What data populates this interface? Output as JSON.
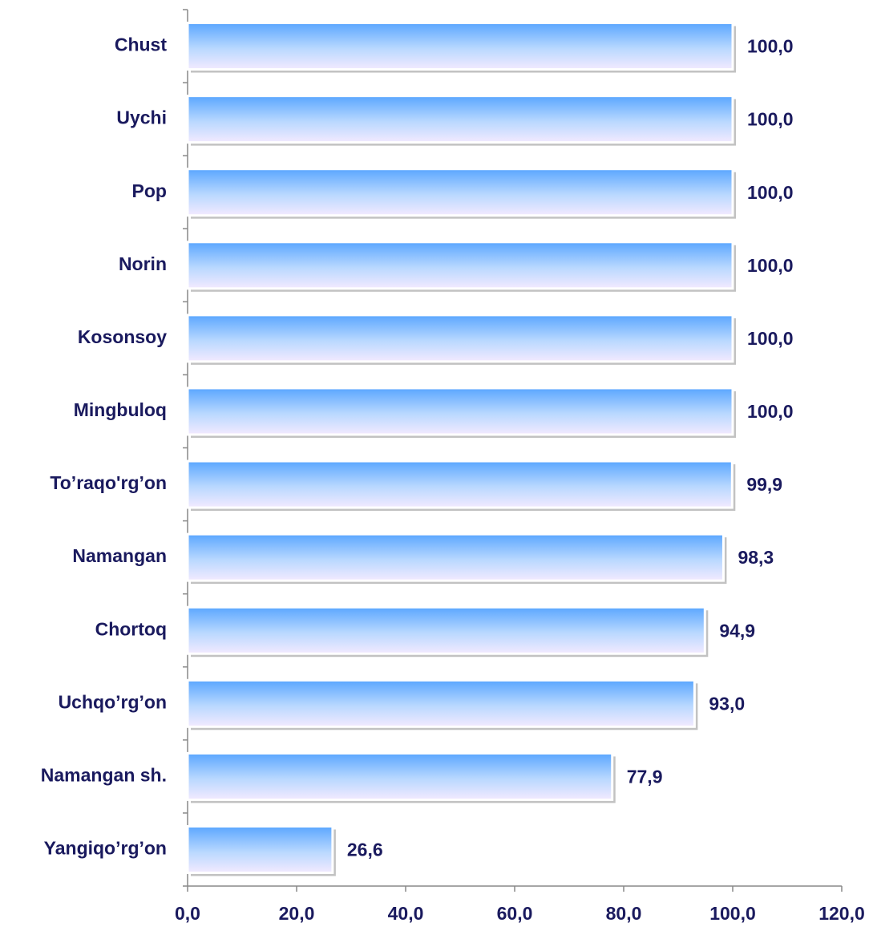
{
  "chart_data": {
    "type": "hbar",
    "categories": [
      "Chust",
      "Uychi",
      "Pop",
      "Norin",
      "Kosonsoy",
      "Mingbuloq",
      "To’raqo'rg’on",
      "Namangan",
      "Chortoq",
      "Uchqo’rg’on",
      "Namangan sh.",
      "Yangiqo’rg’on"
    ],
    "values": [
      100.0,
      100.0,
      100.0,
      100.0,
      100.0,
      100.0,
      99.9,
      98.3,
      94.9,
      93.0,
      77.9,
      26.6
    ],
    "value_labels": [
      "100,0",
      "100,0",
      "100,0",
      "100,0",
      "100,0",
      "100,0",
      "99,9",
      "98,3",
      "94,9",
      "93,0",
      "77,9",
      "26,6"
    ],
    "xlim": [
      0,
      120
    ],
    "xticks": [
      {
        "value": 0,
        "label": "0,0"
      },
      {
        "value": 20,
        "label": "20,0"
      },
      {
        "value": 40,
        "label": "40,0"
      },
      {
        "value": 60,
        "label": "60,0"
      },
      {
        "value": 80,
        "label": "80,0"
      },
      {
        "value": 100,
        "label": "100,0"
      },
      {
        "value": 120,
        "label": "120,0"
      }
    ],
    "color": "#66aaff"
  }
}
